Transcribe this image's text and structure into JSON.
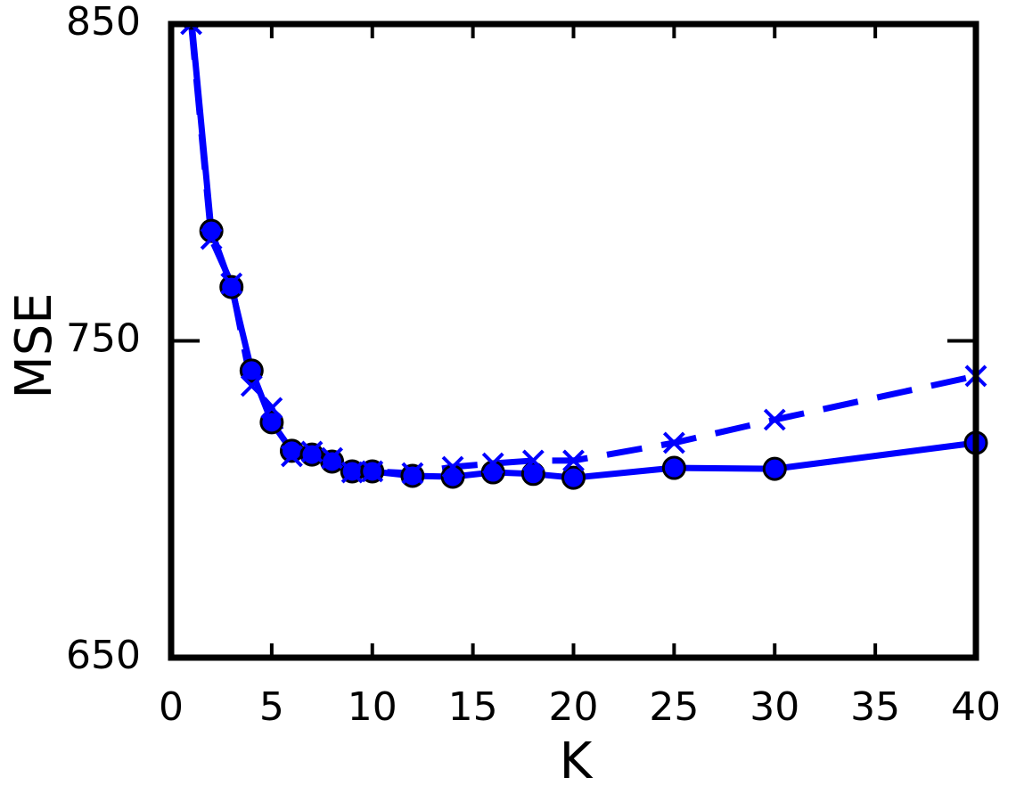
{
  "chart_data": {
    "type": "line",
    "x_label": "K",
    "y_label": "MSE",
    "x": [
      1,
      2,
      3,
      4,
      5,
      6,
      7,
      8,
      9,
      10,
      12,
      14,
      16,
      18,
      20,
      25,
      30,
      40
    ],
    "series": [
      {
        "color": "#0000ff",
        "marker": "o",
        "linestyle": "solid",
        "values": [
          852,
          784.7,
          767.0,
          740.6,
          724.3,
          715.3,
          714.1,
          711.9,
          708.8,
          708.8,
          707.4,
          707.1,
          708.5,
          708.0,
          706.8,
          709.9,
          709.6,
          717.8
        ]
      },
      {
        "color": "#0000ff",
        "marker": "x",
        "linestyle": "dashed",
        "values": [
          850,
          782.2,
          768.1,
          735.8,
          728.8,
          713.6,
          715.0,
          713.0,
          708.5,
          708.8,
          708.2,
          710.2,
          711.3,
          712.2,
          712.2,
          717.8,
          725.1,
          738.9
        ]
      }
    ],
    "xlim": [
      0,
      40
    ],
    "xticks": [
      0,
      5,
      10,
      15,
      20,
      25,
      30,
      35,
      40
    ],
    "ylim": [
      650,
      850
    ],
    "yticks": [
      650,
      750,
      850
    ]
  }
}
